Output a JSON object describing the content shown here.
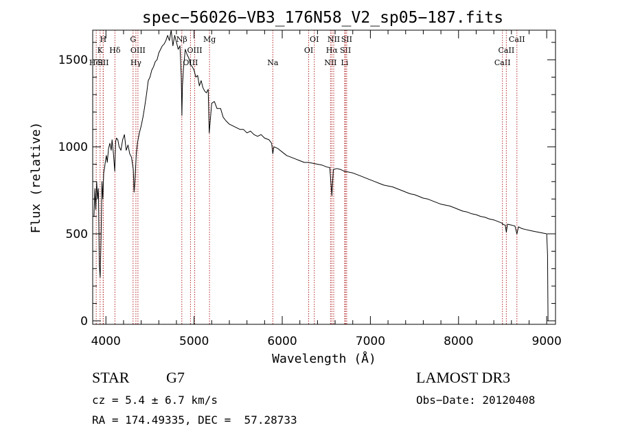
{
  "chart_data": {
    "type": "line",
    "title": "spec−56026−VB3_176N58_V2_sp05−187.fits",
    "xlabel": "Wavelength (Å)",
    "ylabel": "Flux (relative)",
    "xlim": [
      3850,
      9100
    ],
    "ylim": [
      -20,
      1670
    ],
    "x_ticks": [
      4000,
      5000,
      6000,
      7000,
      8000,
      9000
    ],
    "y_ticks": [
      0,
      500,
      1000,
      1500
    ],
    "grid": false,
    "line_color": "#000000",
    "marker_color": "#b22222",
    "series": [
      {
        "name": "flux",
        "points": [
          [
            3865,
            600
          ],
          [
            3875,
            760
          ],
          [
            3885,
            640
          ],
          [
            3895,
            800
          ],
          [
            3905,
            700
          ],
          [
            3915,
            760
          ],
          [
            3925,
            320
          ],
          [
            3935,
            250
          ],
          [
            3945,
            480
          ],
          [
            3955,
            800
          ],
          [
            3965,
            700
          ],
          [
            3975,
            850
          ],
          [
            3985,
            880
          ],
          [
            3995,
            920
          ],
          [
            4005,
            950
          ],
          [
            4015,
            910
          ],
          [
            4030,
            990
          ],
          [
            4045,
            1020
          ],
          [
            4060,
            980
          ],
          [
            4070,
            1040
          ],
          [
            4085,
            960
          ],
          [
            4100,
            860
          ],
          [
            4110,
            1030
          ],
          [
            4120,
            1050
          ],
          [
            4135,
            1040
          ],
          [
            4150,
            1000
          ],
          [
            4170,
            980
          ],
          [
            4190,
            1040
          ],
          [
            4210,
            1070
          ],
          [
            4230,
            980
          ],
          [
            4250,
            1010
          ],
          [
            4270,
            960
          ],
          [
            4290,
            940
          ],
          [
            4310,
            870
          ],
          [
            4320,
            740
          ],
          [
            4330,
            810
          ],
          [
            4345,
            960
          ],
          [
            4360,
            1030
          ],
          [
            4380,
            1080
          ],
          [
            4400,
            1120
          ],
          [
            4420,
            1170
          ],
          [
            4440,
            1230
          ],
          [
            4460,
            1300
          ],
          [
            4480,
            1380
          ],
          [
            4500,
            1400
          ],
          [
            4520,
            1440
          ],
          [
            4540,
            1460
          ],
          [
            4560,
            1490
          ],
          [
            4580,
            1500
          ],
          [
            4600,
            1540
          ],
          [
            4620,
            1560
          ],
          [
            4640,
            1580
          ],
          [
            4660,
            1590
          ],
          [
            4680,
            1610
          ],
          [
            4700,
            1640
          ],
          [
            4720,
            1610
          ],
          [
            4740,
            1670
          ],
          [
            4760,
            1580
          ],
          [
            4780,
            1640
          ],
          [
            4800,
            1600
          ],
          [
            4820,
            1560
          ],
          [
            4840,
            1580
          ],
          [
            4855,
            1400
          ],
          [
            4862,
            1180
          ],
          [
            4868,
            1350
          ],
          [
            4880,
            1450
          ],
          [
            4900,
            1560
          ],
          [
            4920,
            1530
          ],
          [
            4940,
            1510
          ],
          [
            4960,
            1470
          ],
          [
            4980,
            1460
          ],
          [
            5000,
            1440
          ],
          [
            5020,
            1400
          ],
          [
            5040,
            1410
          ],
          [
            5060,
            1350
          ],
          [
            5080,
            1380
          ],
          [
            5100,
            1340
          ],
          [
            5120,
            1320
          ],
          [
            5140,
            1310
          ],
          [
            5160,
            1330
          ],
          [
            5172,
            1080
          ],
          [
            5185,
            1160
          ],
          [
            5200,
            1250
          ],
          [
            5230,
            1260
          ],
          [
            5260,
            1220
          ],
          [
            5300,
            1220
          ],
          [
            5330,
            1170
          ],
          [
            5360,
            1150
          ],
          [
            5400,
            1130
          ],
          [
            5440,
            1120
          ],
          [
            5480,
            1110
          ],
          [
            5520,
            1100
          ],
          [
            5560,
            1100
          ],
          [
            5600,
            1080
          ],
          [
            5640,
            1090
          ],
          [
            5680,
            1070
          ],
          [
            5720,
            1060
          ],
          [
            5760,
            1070
          ],
          [
            5800,
            1050
          ],
          [
            5850,
            1040
          ],
          [
            5880,
            1020
          ],
          [
            5893,
            960
          ],
          [
            5905,
            1000
          ],
          [
            5950,
            990
          ],
          [
            6000,
            970
          ],
          [
            6050,
            950
          ],
          [
            6100,
            940
          ],
          [
            6150,
            930
          ],
          [
            6200,
            920
          ],
          [
            6250,
            910
          ],
          [
            6300,
            910
          ],
          [
            6350,
            905
          ],
          [
            6400,
            900
          ],
          [
            6450,
            895
          ],
          [
            6500,
            885
          ],
          [
            6540,
            880
          ],
          [
            6563,
            720
          ],
          [
            6580,
            870
          ],
          [
            6620,
            875
          ],
          [
            6660,
            870
          ],
          [
            6700,
            860
          ],
          [
            6750,
            855
          ],
          [
            6800,
            850
          ],
          [
            6850,
            840
          ],
          [
            6900,
            830
          ],
          [
            6950,
            820
          ],
          [
            7000,
            810
          ],
          [
            7050,
            800
          ],
          [
            7100,
            790
          ],
          [
            7150,
            780
          ],
          [
            7200,
            775
          ],
          [
            7250,
            770
          ],
          [
            7300,
            760
          ],
          [
            7350,
            750
          ],
          [
            7400,
            740
          ],
          [
            7450,
            730
          ],
          [
            7500,
            725
          ],
          [
            7550,
            715
          ],
          [
            7600,
            705
          ],
          [
            7650,
            700
          ],
          [
            7700,
            690
          ],
          [
            7750,
            680
          ],
          [
            7800,
            670
          ],
          [
            7850,
            665
          ],
          [
            7900,
            660
          ],
          [
            7950,
            650
          ],
          [
            8000,
            640
          ],
          [
            8050,
            630
          ],
          [
            8100,
            625
          ],
          [
            8150,
            615
          ],
          [
            8200,
            610
          ],
          [
            8250,
            600
          ],
          [
            8300,
            595
          ],
          [
            8350,
            585
          ],
          [
            8400,
            580
          ],
          [
            8450,
            570
          ],
          [
            8500,
            560
          ],
          [
            8498,
            555
          ],
          [
            8530,
            550
          ],
          [
            8542,
            510
          ],
          [
            8555,
            555
          ],
          [
            8600,
            550
          ],
          [
            8640,
            545
          ],
          [
            8662,
            500
          ],
          [
            8680,
            540
          ],
          [
            8720,
            530
          ],
          [
            8760,
            525
          ],
          [
            8800,
            520
          ],
          [
            8850,
            515
          ],
          [
            8900,
            510
          ],
          [
            8950,
            505
          ],
          [
            9000,
            500
          ],
          [
            9010,
            380
          ],
          [
            9015,
            0
          ]
        ]
      }
    ],
    "line_markers": [
      {
        "wl": 3890,
        "label": "HeI",
        "row": 3
      },
      {
        "wl": 3934,
        "label": "K",
        "row": 2
      },
      {
        "wl": 3969,
        "label": "H",
        "row": 1
      },
      {
        "wl": 3970,
        "label": "SII",
        "row": 3
      },
      {
        "wl": 4102,
        "label": "Hδ",
        "row": 2
      },
      {
        "wl": 4308,
        "label": "G",
        "row": 1
      },
      {
        "wl": 4340,
        "label": "Hγ",
        "row": 3
      },
      {
        "wl": 4363,
        "label": "OIII",
        "row": 2
      },
      {
        "wl": 4861,
        "label": "Nβ",
        "row": 1
      },
      {
        "wl": 4959,
        "label": "OIII",
        "row": 3
      },
      {
        "wl": 5007,
        "label": "OIII",
        "row": 2
      },
      {
        "wl": 5175,
        "label": "Mg",
        "row": 1
      },
      {
        "wl": 5893,
        "label": "Na",
        "row": 3
      },
      {
        "wl": 6300,
        "label": "OI",
        "row": 2
      },
      {
        "wl": 6364,
        "label": "OI",
        "row": 1
      },
      {
        "wl": 6548,
        "label": "NII",
        "row": 3
      },
      {
        "wl": 6563,
        "label": "Hα",
        "row": 2
      },
      {
        "wl": 6584,
        "label": "NII",
        "row": 1
      },
      {
        "wl": 6708,
        "label": "Li",
        "row": 3
      },
      {
        "wl": 6717,
        "label": "SII",
        "row": 2
      },
      {
        "wl": 6731,
        "label": "SII",
        "row": 1
      },
      {
        "wl": 8498,
        "label": "CaII",
        "row": 3
      },
      {
        "wl": 8542,
        "label": "CaII",
        "row": 2
      },
      {
        "wl": 8662,
        "label": "CaII",
        "row": 1
      }
    ]
  },
  "info": {
    "object_class": "STAR",
    "subclass": "G7",
    "cz": "cz = 5.4 ± 6.7 km/s",
    "coords": "RA = 174.49335, DEC =  57.28733",
    "survey": "LAMOST DR3",
    "obs_date": "Obs−Date: 20120408"
  }
}
